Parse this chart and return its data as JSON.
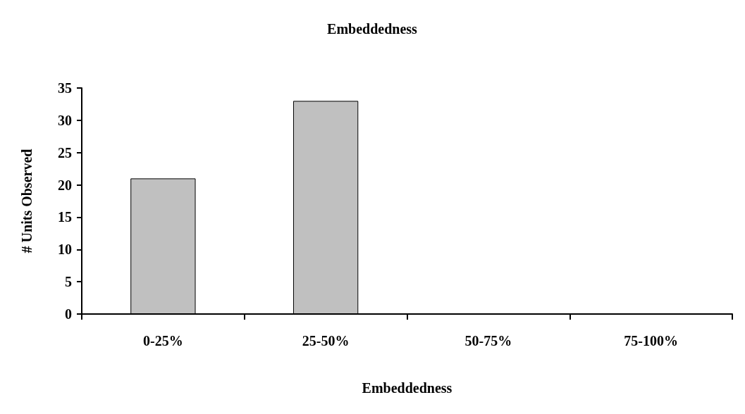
{
  "chart_data": {
    "type": "bar",
    "title": "Embeddedness",
    "xlabel": "Embeddedness",
    "ylabel": "# Units Observed",
    "categories": [
      "0-25%",
      "25-50%",
      "50-75%",
      "75-100%"
    ],
    "values": [
      21,
      33,
      0,
      0
    ],
    "color": "#c0c0c0",
    "ylim": [
      0,
      35
    ],
    "yticks": [
      0,
      5,
      10,
      15,
      20,
      25,
      30,
      35
    ],
    "grid": false
  }
}
